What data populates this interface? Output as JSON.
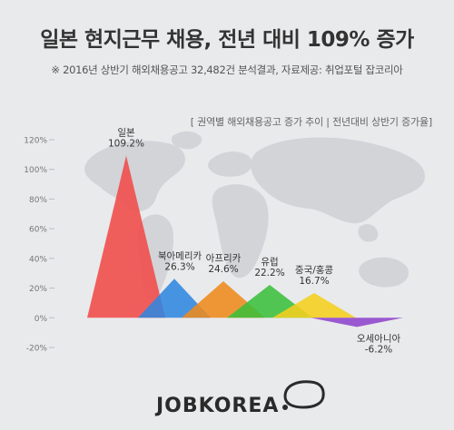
{
  "title": "일본 현지근무 채용, 전년 대비 109% 증가",
  "subtitle": "※ 2016년 상반기 해외채용공고 32,482건 분석결과, 자료제공: 취업포털 잡코리아",
  "legend": "[ 권역별 해외채용공고 증가 추이 | 전년대비 상반기 증가율]",
  "brand": "JOBKOREA",
  "colors": {
    "background": "#e9eaec",
    "map": "#d2d4d8",
    "axis": "#b8bcc2"
  },
  "chart_data": {
    "type": "area",
    "title": "",
    "xlabel": "",
    "ylabel": "",
    "ylim": [
      -20,
      120
    ],
    "yticks": [
      -20,
      0,
      20,
      40,
      60,
      80,
      100,
      120
    ],
    "ytick_labels": [
      "-20%",
      "0%",
      "20%",
      "40%",
      "60%",
      "80%",
      "100%",
      "120%"
    ],
    "grid": false,
    "categories": [
      "일본",
      "북아메리카",
      "아프리카",
      "유럽",
      "중국/홍콩",
      "오세아니아"
    ],
    "values": [
      109.2,
      26.3,
      24.6,
      22.2,
      16.7,
      -6.2
    ],
    "value_labels": [
      "109.2%",
      "26.3%",
      "24.6%",
      "22.2%",
      "16.7%",
      "-6.2%"
    ],
    "colors": [
      "#f04a48",
      "#2f86e0",
      "#ee8a1c",
      "#3bbf3b",
      "#f5cf1e",
      "#8e44cc"
    ]
  }
}
